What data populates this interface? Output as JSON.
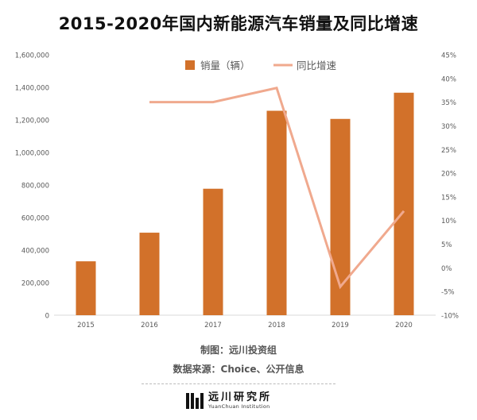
{
  "title": "2015-2020年国内新能源汽车销量及同比增速",
  "chart_data": {
    "type": "bar",
    "categories": [
      "2015",
      "2016",
      "2017",
      "2018",
      "2019",
      "2020"
    ],
    "series": [
      {
        "name": "销量（辆）",
        "type": "bar",
        "axis": "left",
        "values": [
          331092,
          507000,
          777000,
          1256000,
          1206000,
          1367000
        ]
      },
      {
        "name": "同比增速",
        "type": "line",
        "axis": "right",
        "values": [
          null,
          35,
          35,
          38,
          -4,
          12
        ]
      }
    ],
    "y_left": {
      "ylim": [
        0,
        1600000
      ],
      "ticks": [
        "0",
        "200,000",
        "400,000",
        "600,000",
        "800,000",
        "1,000,000",
        "1,200,000",
        "1,400,000",
        "1,600,000"
      ]
    },
    "y_right": {
      "ylim": [
        -10,
        45
      ],
      "ticks": [
        "-10%",
        "-5%",
        "0%",
        "5%",
        "10%",
        "15%",
        "20%",
        "25%",
        "30%",
        "35%",
        "40%",
        "45%"
      ]
    },
    "legend_position": "top",
    "grid": false,
    "colors": {
      "bar": "#d2712a",
      "line": "#f0a98e",
      "axis_text": "#595959",
      "axis_line": "#d9d9d9"
    }
  },
  "credits": {
    "maker": "制图：远川投资组",
    "source": "数据来源：Choice、公开信息"
  },
  "logo": {
    "name": "远川研究所",
    "subtitle": "YuanChuan Institution"
  }
}
